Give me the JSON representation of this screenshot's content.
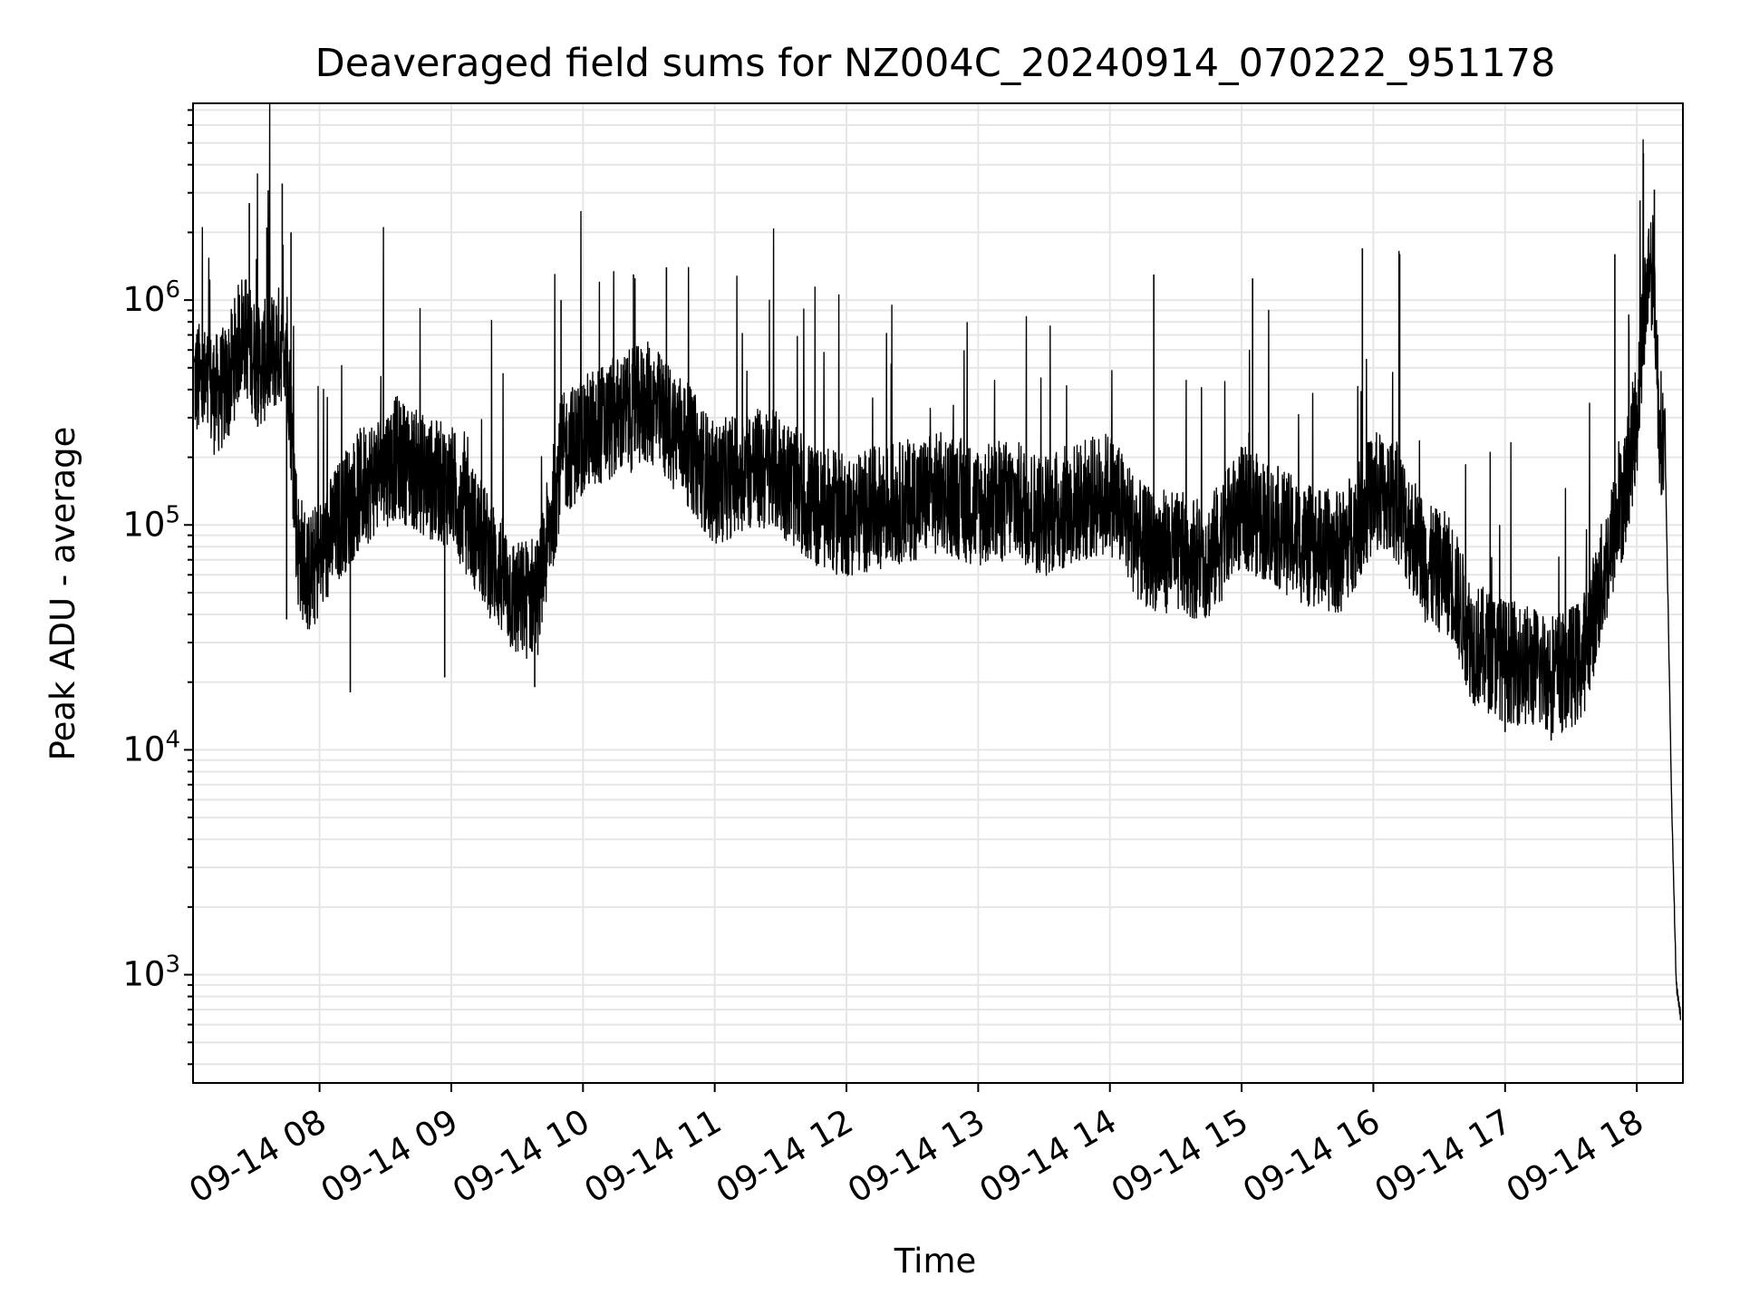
{
  "chart_data": {
    "type": "line",
    "title": "Deaveraged field sums for NZ004C_20240914_070222_951178",
    "xlabel": "Time",
    "ylabel": "Peak ADU - average",
    "yscale": "log",
    "ylim": [
      330,
      7500000
    ],
    "xlim": [
      "2024-09-14 07:02:22",
      "2024-09-14 18:21:00"
    ],
    "grid": true,
    "line_color": "#000000",
    "grid_color": "#e6e6e6",
    "x_ticks": [
      {
        "t": "2024-09-14 08:00",
        "label": "09-14 08"
      },
      {
        "t": "2024-09-14 09:00",
        "label": "09-14 09"
      },
      {
        "t": "2024-09-14 10:00",
        "label": "09-14 10"
      },
      {
        "t": "2024-09-14 11:00",
        "label": "09-14 11"
      },
      {
        "t": "2024-09-14 12:00",
        "label": "09-14 12"
      },
      {
        "t": "2024-09-14 13:00",
        "label": "09-14 13"
      },
      {
        "t": "2024-09-14 14:00",
        "label": "09-14 14"
      },
      {
        "t": "2024-09-14 15:00",
        "label": "09-14 15"
      },
      {
        "t": "2024-09-14 16:00",
        "label": "09-14 16"
      },
      {
        "t": "2024-09-14 17:00",
        "label": "09-14 17"
      },
      {
        "t": "2024-09-14 18:00",
        "label": "09-14 18"
      }
    ],
    "y_ticks": [
      {
        "value": 1000,
        "base": "10",
        "exp": "3"
      },
      {
        "value": 10000,
        "base": "10",
        "exp": "4"
      },
      {
        "value": 100000,
        "base": "10",
        "exp": "5"
      },
      {
        "value": 1000000,
        "base": "10",
        "exp": "6"
      }
    ],
    "series": [
      {
        "x": [
          "2024-09-14 07:03",
          "2024-09-14 07:08",
          "2024-09-14 07:13",
          "2024-09-14 07:18",
          "2024-09-14 07:25",
          "2024-09-14 07:32",
          "2024-09-14 07:40",
          "2024-09-14 07:45",
          "2024-09-14 07:50",
          "2024-09-14 07:55",
          "2024-09-14 08:00",
          "2024-09-14 08:10",
          "2024-09-14 08:20",
          "2024-09-14 08:35",
          "2024-09-14 08:50",
          "2024-09-14 09:00",
          "2024-09-14 09:15",
          "2024-09-14 09:30",
          "2024-09-14 09:40",
          "2024-09-14 09:50",
          "2024-09-14 10:00",
          "2024-09-14 10:15",
          "2024-09-14 10:30",
          "2024-09-14 10:45",
          "2024-09-14 11:00",
          "2024-09-14 11:15",
          "2024-09-14 11:30",
          "2024-09-14 11:45",
          "2024-09-14 12:00",
          "2024-09-14 12:15",
          "2024-09-14 12:30",
          "2024-09-14 12:45",
          "2024-09-14 13:00",
          "2024-09-14 13:15",
          "2024-09-14 13:30",
          "2024-09-14 13:45",
          "2024-09-14 14:00",
          "2024-09-14 14:15",
          "2024-09-14 14:30",
          "2024-09-14 14:45",
          "2024-09-14 15:00",
          "2024-09-14 15:15",
          "2024-09-14 15:30",
          "2024-09-14 15:45",
          "2024-09-14 16:00",
          "2024-09-14 16:10",
          "2024-09-14 16:25",
          "2024-09-14 16:35",
          "2024-09-14 16:45",
          "2024-09-14 17:00",
          "2024-09-14 17:15",
          "2024-09-14 17:25",
          "2024-09-14 17:35",
          "2024-09-14 17:45",
          "2024-09-14 17:55",
          "2024-09-14 18:00",
          "2024-09-14 18:03",
          "2024-09-14 18:06",
          "2024-09-14 18:08",
          "2024-09-14 18:10",
          "2024-09-14 18:13",
          "2024-09-14 18:16",
          "2024-09-14 18:18",
          "2024-09-14 18:20"
        ],
        "y": [
          450000,
          400000,
          380000,
          420000,
          750000,
          500000,
          600000,
          700000,
          80000,
          60000,
          70000,
          110000,
          150000,
          200000,
          160000,
          150000,
          80000,
          45000,
          50000,
          200000,
          250000,
          300000,
          350000,
          250000,
          150000,
          180000,
          170000,
          120000,
          110000,
          120000,
          130000,
          140000,
          120000,
          130000,
          110000,
          125000,
          140000,
          80000,
          75000,
          70000,
          120000,
          100000,
          80000,
          75000,
          140000,
          130000,
          65000,
          60000,
          30000,
          25000,
          23000,
          22000,
          25000,
          60000,
          150000,
          300000,
          800000,
          1500000,
          1200000,
          300000,
          200000,
          5000,
          900,
          650
        ],
        "spikes": [
          {
            "t": "2024-09-14 07:28",
            "y": 2700000
          },
          {
            "t": "2024-09-14 07:36",
            "y": 2100000
          },
          {
            "t": "2024-09-14 07:43",
            "y": 3300000
          },
          {
            "t": "2024-09-14 07:47",
            "y": 2000000
          },
          {
            "t": "2024-09-14 09:50",
            "y": 1000000
          },
          {
            "t": "2024-09-14 10:23",
            "y": 1300000
          },
          {
            "t": "2024-09-14 10:38",
            "y": 1400000
          },
          {
            "t": "2024-09-14 14:20",
            "y": 1300000
          },
          {
            "t": "2024-09-14 15:05",
            "y": 1250000
          },
          {
            "t": "2024-09-14 15:55",
            "y": 1700000
          },
          {
            "t": "2024-09-14 16:12",
            "y": 1600000
          },
          {
            "t": "2024-09-14 17:50",
            "y": 1600000
          },
          {
            "t": "2024-09-14 18:03",
            "y": 4500000
          },
          {
            "t": "2024-09-14 18:08",
            "y": 3100000
          }
        ],
        "dips": [
          {
            "t": "2024-09-14 07:45",
            "y": 38000
          },
          {
            "t": "2024-09-14 08:14",
            "y": 18000
          },
          {
            "t": "2024-09-14 08:57",
            "y": 21000
          },
          {
            "t": "2024-09-14 09:38",
            "y": 19000
          },
          {
            "t": "2024-09-14 17:00",
            "y": 12000
          },
          {
            "t": "2024-09-14 17:21",
            "y": 11000
          }
        ]
      }
    ]
  }
}
